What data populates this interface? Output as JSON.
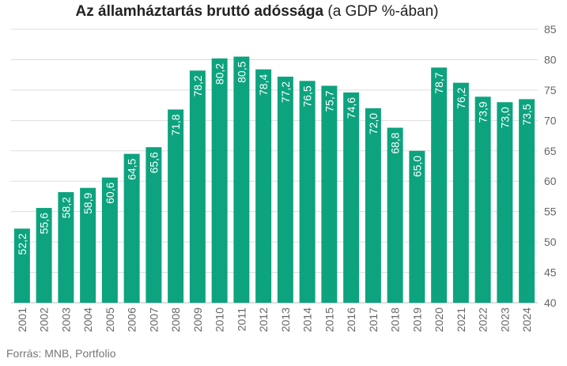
{
  "chart_data": {
    "type": "bar",
    "title": "Az államháztartás bruttó adóssága",
    "subtitle": "(a GDP %-ában)",
    "xlabel": "",
    "ylabel": "",
    "categories": [
      "2001",
      "2002",
      "2003",
      "2004",
      "2005",
      "2006",
      "2007",
      "2008",
      "2009",
      "2010",
      "2011",
      "2012",
      "2013",
      "2014",
      "2015",
      "2016",
      "2017",
      "2018",
      "2019",
      "2020",
      "2021",
      "2022",
      "2023",
      "2024"
    ],
    "values": [
      52.2,
      55.6,
      58.2,
      58.9,
      60.6,
      64.5,
      65.6,
      71.8,
      78.2,
      80.2,
      80.5,
      78.4,
      77.2,
      76.5,
      75.7,
      74.6,
      72.0,
      68.8,
      65.0,
      78.7,
      76.2,
      73.9,
      73.0,
      73.5
    ],
    "value_labels": [
      "52,2",
      "55,6",
      "58,2",
      "58,9",
      "60,6",
      "64,5",
      "65,6",
      "71,8",
      "78,2",
      "80,2",
      "80,5",
      "78,4",
      "77,2",
      "76,5",
      "75,7",
      "74,6",
      "72,0",
      "68,8",
      "65,0",
      "78,7",
      "76,2",
      "73,9",
      "73,0",
      "73,5"
    ],
    "ylim": [
      40,
      85
    ],
    "yticks": [
      40,
      45,
      50,
      55,
      60,
      65,
      70,
      75,
      80,
      85
    ],
    "y_axis_side": "right",
    "grid": true,
    "bar_color": "#0da37f"
  },
  "source": "Forrás: MNB, Portfolio"
}
